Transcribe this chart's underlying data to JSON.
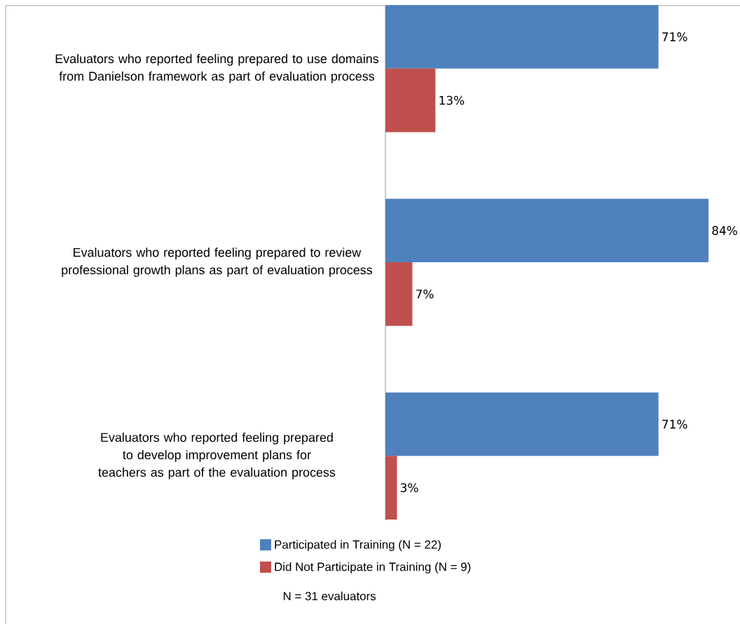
{
  "chart_data": {
    "type": "bar",
    "orientation": "horizontal",
    "categories": [
      "Evaluators who reported feeling prepared to use domains from Danielson framework as part of evaluation process",
      "Evaluators who reported feeling  prepared to review professional growth plans as part of evaluation process",
      "Evaluators who reported feeling  prepared to develop improvement plans for teachers as part of the evaluation process"
    ],
    "series": [
      {
        "name": "Participated in Training (N = 22)",
        "color": "#4f81bd",
        "values": [
          71,
          84,
          71
        ],
        "value_labels": [
          "71%",
          "84%",
          "71%"
        ]
      },
      {
        "name": "Did Not Participate in Training (N = 9)",
        "color": "#c0504d",
        "values": [
          13,
          7,
          3
        ],
        "value_labels": [
          "13%",
          "7%",
          "3%"
        ]
      }
    ],
    "legend": "bottom",
    "annotations": [
      "N = 31 evaluators"
    ]
  }
}
